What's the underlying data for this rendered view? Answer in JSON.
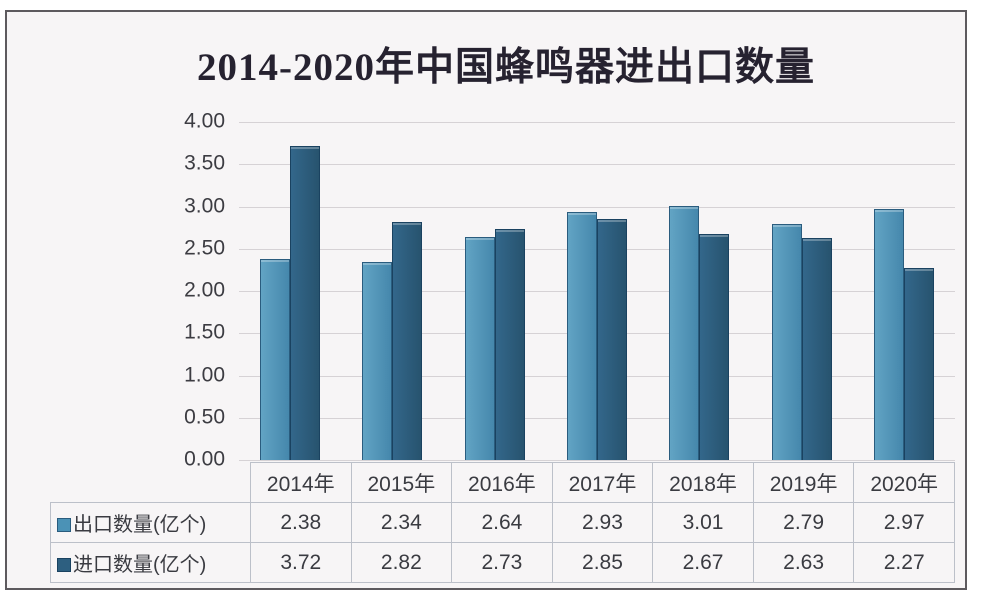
{
  "title": "2014-2020年中国蜂鸣器进出口数量",
  "frame": {
    "background": "#f7f5f6",
    "border_color": "#5d5a5e"
  },
  "chart_data": {
    "type": "bar",
    "title": "2014-2020年中国蜂鸣器进出口数量",
    "categories": [
      "2014年",
      "2015年",
      "2016年",
      "2017年",
      "2018年",
      "2019年",
      "2020年"
    ],
    "series": [
      {
        "name": "出口数量(亿个)",
        "values": [
          2.38,
          2.34,
          2.64,
          2.93,
          3.01,
          2.79,
          2.97
        ],
        "color_light": "#62a4c4",
        "color": "#4587ac",
        "color_dark": "#2a5c7e",
        "legend_color": "#4b92b6"
      },
      {
        "name": "进口数量(亿个)",
        "values": [
          3.72,
          2.82,
          2.73,
          2.85,
          2.67,
          2.63,
          2.27
        ],
        "color_light": "#33678b",
        "color": "#27536e",
        "color_dark": "#1a4260",
        "legend_color": "#2d5f80"
      }
    ],
    "xlabel": "",
    "ylabel": "",
    "ylim": [
      0,
      4
    ],
    "ytick_step": 0.5,
    "ytick_labels": [
      "0.00",
      "0.50",
      "1.00",
      "1.50",
      "2.00",
      "2.50",
      "3.00",
      "3.50",
      "4.00"
    ],
    "grid": true,
    "legend_position": "table-left",
    "gridline_color": "#d6d2d5"
  }
}
